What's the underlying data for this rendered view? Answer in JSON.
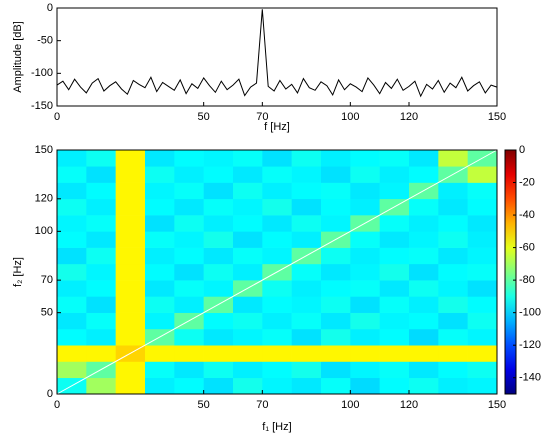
{
  "chart_data": [
    {
      "type": "line",
      "ylabel": "Amplitude [dB]",
      "xlabel": "f [Hz]",
      "x": [
        0,
        2,
        4,
        6,
        8,
        10,
        12,
        14,
        16,
        18,
        20,
        22,
        24,
        26,
        28,
        30,
        32,
        34,
        36,
        38,
        40,
        42,
        44,
        46,
        48,
        50,
        52,
        54,
        56,
        58,
        60,
        62,
        64,
        66,
        68,
        70,
        72,
        74,
        76,
        78,
        80,
        82,
        84,
        86,
        88,
        90,
        92,
        94,
        96,
        98,
        100,
        102,
        104,
        106,
        108,
        110,
        112,
        114,
        116,
        118,
        120,
        122,
        124,
        126,
        128,
        130,
        132,
        134,
        136,
        138,
        140,
        142,
        144,
        146,
        148,
        150
      ],
      "series": [
        {
          "color": "#000000",
          "values": [
            -118,
            -112,
            -125,
            -109,
            -121,
            -130,
            -115,
            -108,
            -127,
            -119,
            -113,
            -124,
            -132,
            -111,
            -117,
            -122,
            -106,
            -128,
            -114,
            -120,
            -126,
            -110,
            -131,
            -116,
            -123,
            -107,
            -119,
            -129,
            -112,
            -125,
            -118,
            -109,
            -134,
            -121,
            -115,
            -2,
            -120,
            -127,
            -111,
            -124,
            -117,
            -130,
            -108,
            -122,
            -126,
            -113,
            -119,
            -133,
            -110,
            -125,
            -116,
            -121,
            -128,
            -107,
            -118,
            -131,
            -114,
            -123,
            -109,
            -126,
            -120,
            -112,
            -135,
            -117,
            -124,
            -111,
            -129,
            -115,
            -122,
            -106,
            -127,
            -119,
            -113,
            -130,
            -118,
            -121
          ]
        }
      ],
      "xlim": [
        0,
        150
      ],
      "xticks": [
        0,
        50,
        70,
        100,
        120,
        150
      ],
      "ylim": [
        -150,
        0
      ],
      "yticks": [
        0,
        -50,
        -100,
        -150
      ]
    },
    {
      "type": "heatmap",
      "xlabel": "f₁ [Hz]",
      "ylabel": "f₂ [Hz]",
      "colormap": "jet",
      "x": [
        5,
        15,
        25,
        35,
        45,
        55,
        65,
        75,
        85,
        95,
        105,
        115,
        125,
        135,
        145
      ],
      "y": [
        5,
        15,
        25,
        35,
        45,
        55,
        65,
        75,
        85,
        95,
        105,
        115,
        125,
        135,
        145
      ],
      "z": [
        [
          -92,
          -70,
          -55,
          -96,
          -94,
          -98,
          -91,
          -95,
          -97,
          -93,
          -99,
          -94,
          -92,
          -96,
          -95
        ],
        [
          -70,
          -80,
          -55,
          -93,
          -97,
          -92,
          -96,
          -94,
          -91,
          -98,
          -95,
          -93,
          -97,
          -94,
          -92
        ],
        [
          -55,
          -55,
          -50,
          -55,
          -55,
          -55,
          -55,
          -55,
          -55,
          -55,
          -55,
          -55,
          -55,
          -55,
          -55
        ],
        [
          -94,
          -96,
          -55,
          -80,
          -92,
          -97,
          -95,
          -93,
          -98,
          -91,
          -96,
          -94,
          -99,
          -93,
          -95
        ],
        [
          -97,
          -93,
          -55,
          -95,
          -80,
          -94,
          -92,
          -96,
          -93,
          -97,
          -91,
          -95,
          -94,
          -98,
          -92
        ],
        [
          -93,
          -98,
          -55,
          -92,
          -96,
          -80,
          -97,
          -94,
          -95,
          -92,
          -98,
          -93,
          -96,
          -91,
          -94
        ],
        [
          -96,
          -94,
          -55,
          -97,
          -93,
          -95,
          -80,
          -92,
          -96,
          -94,
          -93,
          -97,
          -92,
          -95,
          -98
        ],
        [
          -91,
          -95,
          -55,
          -94,
          -98,
          -92,
          -96,
          -80,
          -93,
          -97,
          -95,
          -91,
          -98,
          -94,
          -93
        ],
        [
          -98,
          -92,
          -55,
          -96,
          -94,
          -97,
          -93,
          -95,
          -80,
          -92,
          -96,
          -94,
          -93,
          -97,
          -95
        ],
        [
          -94,
          -97,
          -55,
          -93,
          -95,
          -91,
          -98,
          -94,
          -96,
          -80,
          -93,
          -97,
          -95,
          -92,
          -96
        ],
        [
          -95,
          -93,
          -55,
          -98,
          -92,
          -96,
          -94,
          -97,
          -92,
          -95,
          -80,
          -93,
          -96,
          -94,
          -97
        ],
        [
          -92,
          -96,
          -55,
          -94,
          -97,
          -93,
          -95,
          -91,
          -98,
          -94,
          -96,
          -80,
          -93,
          -97,
          -94
        ],
        [
          -97,
          -94,
          -55,
          -95,
          -93,
          -98,
          -92,
          -96,
          -94,
          -93,
          -97,
          -95,
          -80,
          -96,
          -93
        ],
        [
          -93,
          -98,
          -55,
          -92,
          -96,
          -94,
          -97,
          -93,
          -95,
          -98,
          -92,
          -96,
          -94,
          -80,
          -65
        ],
        [
          -96,
          -92,
          -55,
          -97,
          -94,
          -95,
          -93,
          -98,
          -92,
          -96,
          -94,
          -93,
          -97,
          -65,
          -80
        ]
      ],
      "xlim": [
        0,
        150
      ],
      "xticks": [
        0,
        50,
        70,
        100,
        120,
        150
      ],
      "ylim": [
        0,
        150
      ],
      "yticks": [
        0,
        50,
        70,
        100,
        120,
        150
      ],
      "clim": [
        -150,
        0
      ],
      "cticks": [
        0,
        -20,
        -40,
        -60,
        -80,
        -100,
        -120,
        -140
      ]
    }
  ]
}
